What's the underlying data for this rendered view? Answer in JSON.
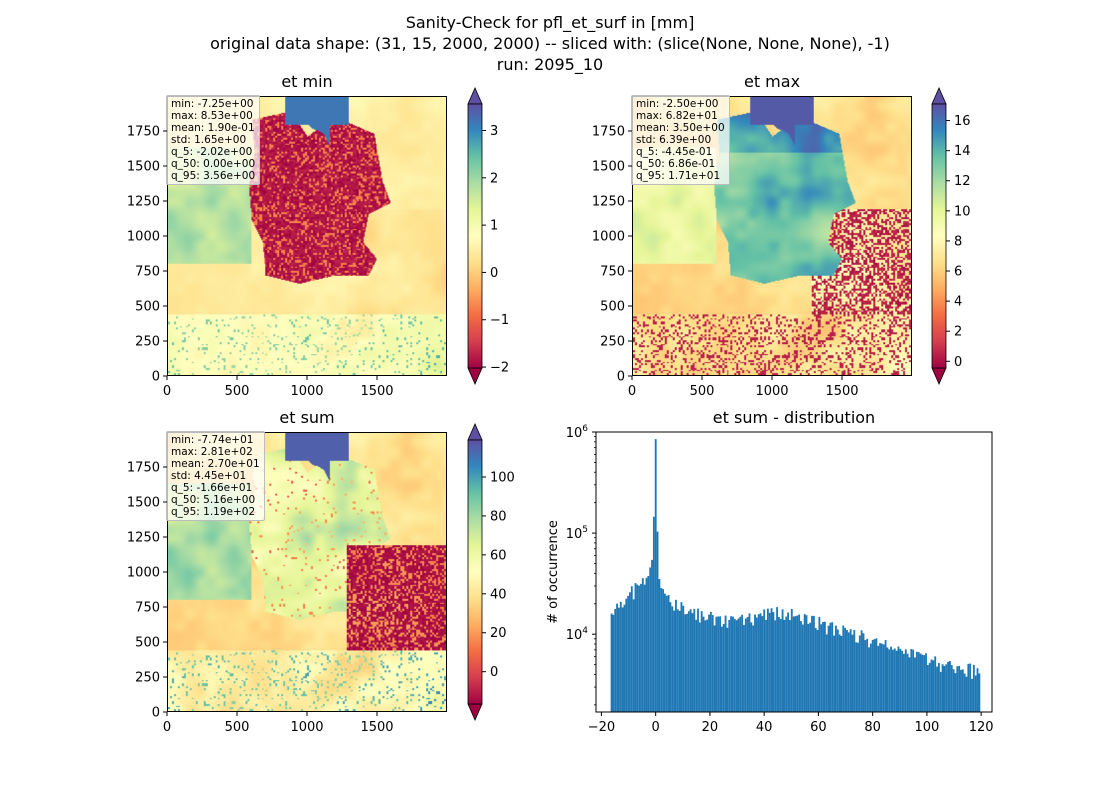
{
  "figure": {
    "title_lines": [
      "Sanity-Check for pfl_et_surf in [mm]",
      "original data shape: (31, 15, 2000, 2000) -- sliced with: (slice(None, None, None), -1)",
      "run: 2095_10"
    ]
  },
  "chart_data": [
    {
      "type": "heatmap",
      "title": "et min",
      "colormap": "Spectral",
      "x_ticks": [
        0,
        500,
        1000,
        1500
      ],
      "y_ticks": [
        0,
        250,
        500,
        750,
        1000,
        1250,
        1500,
        1750
      ],
      "xlim": [
        0,
        2000
      ],
      "ylim": [
        0,
        2000
      ],
      "colorbar": {
        "vmin": -2.02,
        "vmax": 3.56,
        "ticks": [
          -2,
          -1,
          0,
          1,
          2,
          3
        ],
        "extend": "both"
      },
      "stats": [
        "min: -7.25e+00",
        "max: 8.53e+00",
        "mean: 1.90e-01",
        "std: 1.65e+00",
        "q_5: -2.02e+00",
        "q_50: 0.00e+00",
        "q_95: 3.56e+00"
      ],
      "pattern": "min"
    },
    {
      "type": "heatmap",
      "title": "et max",
      "colormap": "Spectral",
      "x_ticks": [
        0,
        500,
        1000,
        1500
      ],
      "y_ticks": [
        0,
        250,
        500,
        750,
        1000,
        1250,
        1500,
        1750
      ],
      "xlim": [
        0,
        2000
      ],
      "ylim": [
        0,
        2000
      ],
      "colorbar": {
        "vmin": -0.445,
        "vmax": 17.1,
        "ticks": [
          0,
          2,
          4,
          6,
          8,
          10,
          12,
          14,
          16
        ],
        "extend": "both"
      },
      "stats": [
        "min: -2.50e+00",
        "max: 6.82e+01",
        "mean: 3.50e+00",
        "std: 6.39e+00",
        "q_5: -4.45e-01",
        "q_50: 6.86e-01",
        "q_95: 1.71e+01"
      ],
      "pattern": "max"
    },
    {
      "type": "heatmap",
      "title": "et sum",
      "colormap": "Spectral",
      "x_ticks": [
        0,
        500,
        1000,
        1500
      ],
      "y_ticks": [
        0,
        250,
        500,
        750,
        1000,
        1250,
        1500,
        1750
      ],
      "xlim": [
        0,
        2000
      ],
      "ylim": [
        0,
        2000
      ],
      "colorbar": {
        "vmin": -16.6,
        "vmax": 119,
        "ticks": [
          0,
          20,
          40,
          60,
          80,
          100
        ],
        "extend": "both"
      },
      "stats": [
        "min: -7.74e+01",
        "max: 2.81e+02",
        "mean: 2.70e+01",
        "std: 4.45e+01",
        "q_5: -1.66e+01",
        "q_50: 5.16e+00",
        "q_95: 1.19e+02"
      ],
      "pattern": "sum"
    },
    {
      "type": "bar",
      "title": "et sum - distribution",
      "ylabel": "# of occurrence",
      "xlabel": "",
      "yscale": "log",
      "ylim": [
        1700,
        1000000
      ],
      "xlim": [
        -22,
        124
      ],
      "x_ticks": [
        -20,
        0,
        20,
        40,
        60,
        80,
        100,
        120
      ],
      "y_ticks": [
        {
          "value": 10000,
          "label": "10^4"
        },
        {
          "value": 100000,
          "label": "10^5"
        },
        {
          "value": 1000000,
          "label": "10^6"
        }
      ],
      "bar_color": "#1f77b4",
      "bin_range": [
        -16.6,
        119
      ],
      "bin_width": 0.678,
      "bins_sampled": [
        {
          "x": -16,
          "y": 17000
        },
        {
          "x": -14,
          "y": 19000
        },
        {
          "x": -12,
          "y": 21000
        },
        {
          "x": -10,
          "y": 24000
        },
        {
          "x": -8,
          "y": 27000
        },
        {
          "x": -6,
          "y": 31000
        },
        {
          "x": -4,
          "y": 36000
        },
        {
          "x": -2,
          "y": 45000
        },
        {
          "x": -1,
          "y": 60000
        },
        {
          "x": 0,
          "y": 850000
        },
        {
          "x": 1,
          "y": 40000
        },
        {
          "x": 2,
          "y": 28000
        },
        {
          "x": 4,
          "y": 24000
        },
        {
          "x": 6,
          "y": 21000
        },
        {
          "x": 8,
          "y": 19000
        },
        {
          "x": 10,
          "y": 18000
        },
        {
          "x": 12,
          "y": 17000
        },
        {
          "x": 15,
          "y": 16000
        },
        {
          "x": 18,
          "y": 15000
        },
        {
          "x": 20,
          "y": 14500
        },
        {
          "x": 25,
          "y": 13500
        },
        {
          "x": 30,
          "y": 13500
        },
        {
          "x": 35,
          "y": 14500
        },
        {
          "x": 40,
          "y": 15500
        },
        {
          "x": 45,
          "y": 16500
        },
        {
          "x": 50,
          "y": 16000
        },
        {
          "x": 55,
          "y": 14500
        },
        {
          "x": 60,
          "y": 13000
        },
        {
          "x": 65,
          "y": 11500
        },
        {
          "x": 70,
          "y": 10500
        },
        {
          "x": 75,
          "y": 9500
        },
        {
          "x": 80,
          "y": 8500
        },
        {
          "x": 85,
          "y": 7500
        },
        {
          "x": 90,
          "y": 6800
        },
        {
          "x": 95,
          "y": 6000
        },
        {
          "x": 100,
          "y": 5500
        },
        {
          "x": 105,
          "y": 5000
        },
        {
          "x": 110,
          "y": 4600
        },
        {
          "x": 115,
          "y": 4400
        },
        {
          "x": 119,
          "y": 4300
        }
      ]
    }
  ]
}
